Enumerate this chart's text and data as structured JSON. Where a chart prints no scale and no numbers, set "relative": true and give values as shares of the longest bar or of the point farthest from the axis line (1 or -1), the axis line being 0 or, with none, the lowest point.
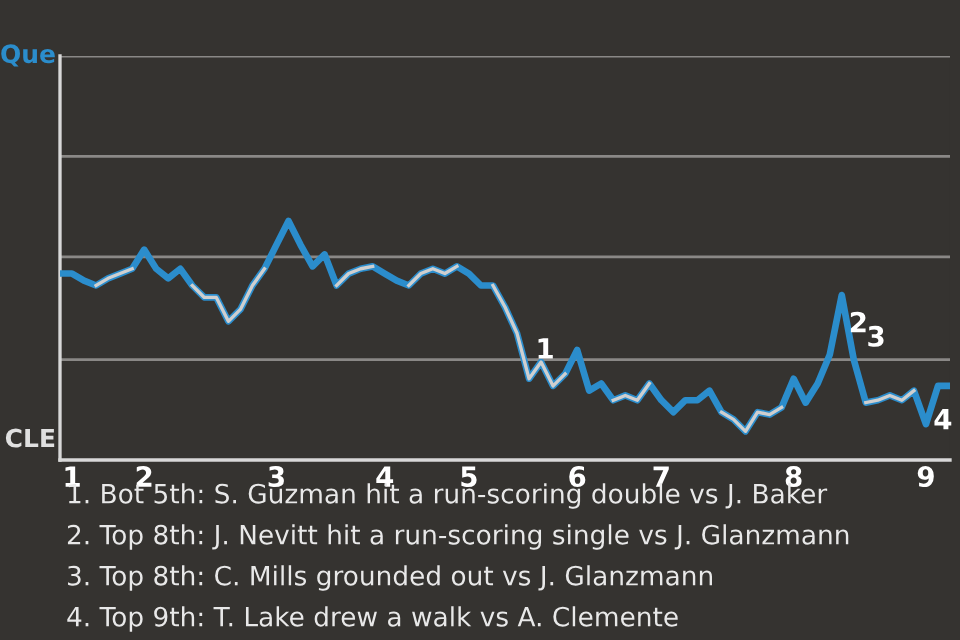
{
  "chart_data": {
    "type": "line",
    "relative": true,
    "categories": [
      null,
      "1",
      null,
      null,
      null,
      null,
      null,
      "2",
      null,
      null,
      null,
      null,
      null,
      null,
      null,
      null,
      null,
      null,
      "3",
      null,
      null,
      null,
      null,
      null,
      null,
      null,
      null,
      "4",
      null,
      null,
      null,
      null,
      null,
      null,
      "5",
      null,
      null,
      null,
      null,
      null,
      null,
      null,
      null,
      "6",
      null,
      null,
      null,
      null,
      null,
      null,
      "7",
      null,
      null,
      null,
      null,
      null,
      null,
      null,
      null,
      null,
      null,
      "8",
      null,
      null,
      null,
      null,
      null,
      null,
      null,
      null,
      null,
      null,
      "9",
      null,
      null
    ],
    "ref_lines": [
      {
        "axis": "y",
        "value": 0.42,
        "color": "#8a8886"
      },
      {
        "axis": "y",
        "value": 0.85,
        "color": "#8a8886"
      },
      {
        "axis": "y",
        "value": 1.27,
        "color": "#8a8886"
      },
      {
        "axis": "y",
        "value": 1.69,
        "color": "#8a8886"
      }
    ],
    "marker": "none",
    "line_style": "solid",
    "series": [
      {
        "color": "#2b8dcc",
        "values": [
          0.78,
          0.78,
          0.75,
          0.73,
          0.76,
          0.78,
          0.8,
          0.88,
          0.8,
          0.76,
          0.8,
          0.73,
          0.68,
          0.68,
          0.58,
          0.63,
          0.73,
          0.8,
          0.9,
          1,
          0.9,
          0.81,
          0.86,
          0.73,
          0.78,
          0.8,
          0.81,
          0.78,
          0.75,
          0.73,
          0.78,
          0.8,
          0.78,
          0.81,
          0.78,
          0.73,
          0.73,
          0.64,
          0.53,
          0.34,
          0.41,
          0.31,
          0.36,
          0.46,
          0.29,
          0.32,
          0.25,
          0.27,
          0.25,
          0.32,
          0.25,
          0.2,
          0.25,
          0.25,
          0.29,
          0.2,
          0.17,
          0.12,
          0.2,
          0.19,
          0.22,
          0.34,
          0.24,
          0.32,
          0.44,
          0.69,
          0.42,
          0.24,
          0.25,
          0.27,
          0.25,
          0.29,
          0.15,
          0.31,
          0.31
        ]
      },
      {
        "color": "#cfcfcf",
        "values": [
          null,
          null,
          null,
          0.73,
          0.76,
          0.78,
          0.8,
          null,
          null,
          null,
          null,
          0.73,
          0.68,
          0.68,
          0.58,
          0.63,
          0.73,
          0.8,
          null,
          null,
          null,
          null,
          null,
          0.73,
          0.78,
          0.8,
          0.81,
          null,
          null,
          0.73,
          0.78,
          0.8,
          0.78,
          0.81,
          null,
          null,
          0.73,
          0.64,
          0.53,
          0.34,
          0.41,
          0.31,
          0.36,
          null,
          null,
          null,
          0.25,
          0.27,
          0.25,
          0.32,
          null,
          null,
          null,
          null,
          null,
          0.2,
          0.17,
          0.12,
          0.2,
          0.19,
          0.22,
          null,
          null,
          null,
          null,
          null,
          null,
          0.24,
          0.25,
          0.27,
          0.25,
          0.29,
          null,
          null,
          null
        ]
      }
    ],
    "annotations": [
      "1",
      "2",
      "3",
      "4",
      "Que",
      "CLE",
      "1. Bot 5th: S. Guzman hit a run-scoring double vs J. Baker",
      "2. Top 8th: J. Nevitt hit a run-scoring single vs J. Glanzmann",
      "3. Top 8th: C. Mills grounded out vs J. Glanzmann",
      "4. Top 9th: T. Lake drew a walk vs A. Clemente"
    ]
  }
}
